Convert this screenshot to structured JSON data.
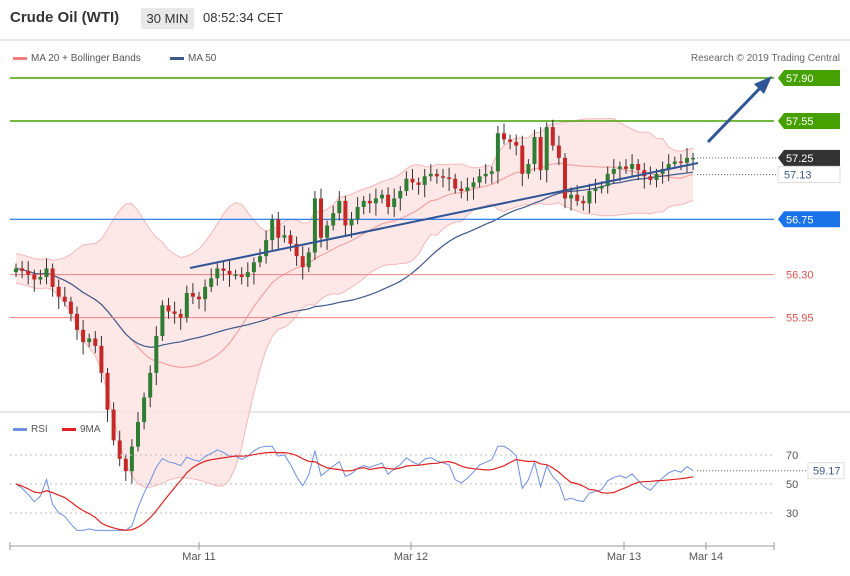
{
  "header": {
    "title": "Crude Oil (WTI)",
    "interval": "30 MIN",
    "time": "08:52:34 CET"
  },
  "legend": {
    "bollinger": "MA 20 + Bollinger Bands",
    "ma50": "MA 50",
    "credit": "Research © 2019 Trading Central"
  },
  "rsi_legend": {
    "rsi": "RSI",
    "ma": "9MA"
  },
  "colors": {
    "green": "#45a000",
    "blue_level": "#1a73e8",
    "red_level": "#f08080",
    "dark_badge": "#333333",
    "trend": "#2f5597",
    "candle_up": "#2e7d32",
    "candle_down": "#c62828",
    "bb_fill": "#fde3e3",
    "ma20": "#f4a3a3",
    "ma50": "#3d5a8a",
    "rsi": "#6d8fe0",
    "rsi_ma": "#e02020"
  },
  "chart_data": {
    "type": "candlestick",
    "instrument": "Crude Oil (WTI)",
    "interval": "30 MIN",
    "ylim": [
      55.0,
      58.0
    ],
    "x_labels": [
      "Mar 11",
      "Mar 12",
      "Mar 13",
      "Mar 14"
    ],
    "levels": [
      {
        "label": "57.90",
        "value": 57.9,
        "kind": "resistance"
      },
      {
        "label": "57.55",
        "value": 57.55,
        "kind": "resistance"
      },
      {
        "label": "56.75",
        "value": 56.75,
        "kind": "pivot"
      },
      {
        "label": "56.30",
        "value": 56.3,
        "kind": "support"
      },
      {
        "label": "55.95",
        "value": 55.95,
        "kind": "support"
      }
    ],
    "last_price": {
      "label": "57.25",
      "value": 57.25
    },
    "ma_value": {
      "label": "57.13",
      "value": 57.13
    },
    "closes": [
      56.35,
      56.33,
      56.3,
      56.26,
      56.28,
      56.35,
      56.2,
      56.12,
      56.08,
      55.98,
      55.85,
      55.75,
      55.78,
      55.72,
      55.5,
      55.2,
      54.95,
      54.8,
      54.7,
      54.9,
      55.1,
      55.3,
      55.5,
      55.8,
      56.05,
      56.0,
      55.98,
      55.95,
      56.15,
      56.12,
      56.1,
      56.2,
      56.27,
      56.35,
      56.33,
      56.3,
      56.3,
      56.28,
      56.32,
      56.4,
      56.45,
      56.58,
      56.75,
      56.6,
      56.62,
      56.55,
      56.45,
      56.36,
      56.48,
      56.92,
      56.6,
      56.7,
      56.8,
      56.9,
      56.7,
      56.75,
      56.85,
      56.9,
      56.88,
      56.92,
      56.95,
      56.85,
      56.92,
      56.98,
      57.08,
      57.05,
      57.03,
      57.1,
      57.12,
      57.1,
      57.09,
      57.08,
      57.0,
      56.98,
      57.01,
      57.05,
      57.1,
      57.12,
      57.14,
      57.45,
      57.4,
      57.38,
      57.35,
      57.12,
      57.2,
      57.42,
      57.15,
      57.5,
      57.35,
      57.25,
      56.92,
      56.95,
      56.9,
      56.88,
      56.98,
      57.0,
      57.02,
      57.12,
      57.16,
      57.18,
      57.16,
      57.2,
      57.15,
      57.1,
      57.07,
      57.12,
      57.16,
      57.2,
      57.22,
      57.21,
      57.25,
      57.25
    ],
    "rsi": {
      "ticks": [
        70,
        50,
        30
      ],
      "ylim": [
        15,
        80
      ],
      "last_label": "59.17",
      "last_value": 59.17
    }
  }
}
